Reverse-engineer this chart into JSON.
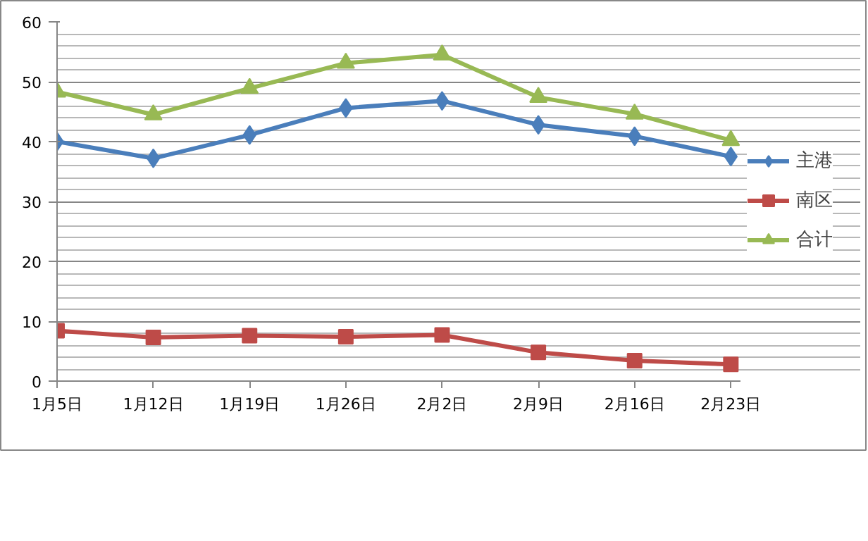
{
  "chart_data": {
    "type": "line",
    "categories": [
      "1月5日",
      "1月12日",
      "1月19日",
      "1月26日",
      "2月2日",
      "2月9日",
      "2月16日",
      "2月23日"
    ],
    "series": [
      {
        "name": "主港",
        "color": "#4a7ebb",
        "marker": "diamond",
        "values": [
          40.0,
          37.2,
          41.1,
          45.6,
          46.8,
          42.8,
          40.9,
          37.5
        ]
      },
      {
        "name": "南区",
        "color": "#be4b48",
        "marker": "square",
        "values": [
          8.4,
          7.3,
          7.6,
          7.4,
          7.7,
          4.8,
          3.4,
          2.8
        ]
      },
      {
        "name": "合计",
        "color": "#98b954",
        "marker": "triangle",
        "values": [
          48.3,
          44.5,
          48.9,
          53.1,
          54.5,
          47.4,
          44.6,
          40.2
        ]
      }
    ],
    "ylim": [
      0,
      60
    ],
    "yticks": [
      0,
      10,
      20,
      30,
      40,
      50,
      60
    ],
    "grid": "y",
    "legend": "right",
    "line_style": "solid"
  }
}
